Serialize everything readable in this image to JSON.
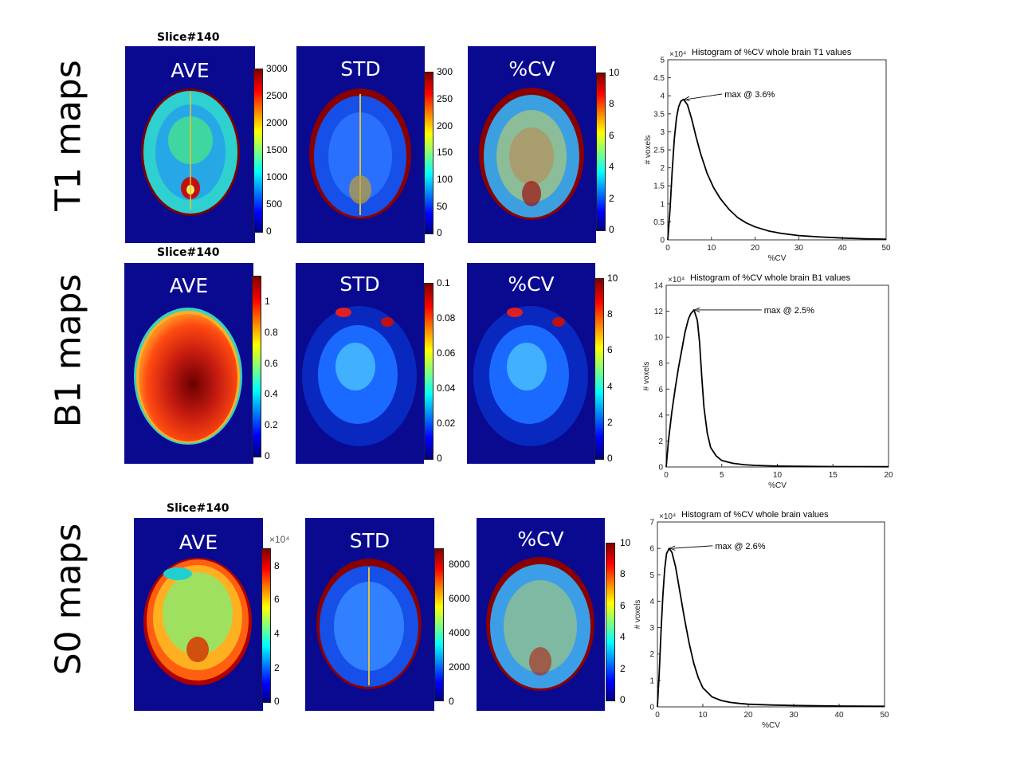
{
  "rows": [
    {
      "label": "T1 maps",
      "slice": "Slice#140",
      "panels": [
        {
          "title": "AVE",
          "ticks": [
            "3000",
            "2500",
            "2000",
            "1500",
            "1000",
            "500",
            "0"
          ],
          "exponent": ""
        },
        {
          "title": "STD",
          "ticks": [
            "300",
            "250",
            "200",
            "150",
            "100",
            "50",
            "0"
          ],
          "exponent": ""
        },
        {
          "title": "%CV",
          "ticks": [
            "10",
            "8",
            "6",
            "4",
            "2",
            "0"
          ],
          "exponent": ""
        }
      ]
    },
    {
      "label": "B1 maps",
      "slice": "Slice#140",
      "panels": [
        {
          "title": "AVE",
          "ticks": [
            "1",
            "0.8",
            "0.6",
            "0.4",
            "0.2",
            "0"
          ],
          "exponent": ""
        },
        {
          "title": "STD",
          "ticks": [
            "0.1",
            "0.08",
            "0.06",
            "0.04",
            "0.02",
            "0"
          ],
          "exponent": ""
        },
        {
          "title": "%CV",
          "ticks": [
            "10",
            "8",
            "6",
            "4",
            "2",
            "0"
          ],
          "exponent": ""
        }
      ]
    },
    {
      "label": "S0 maps",
      "slice": "Slice#140",
      "panels": [
        {
          "title": "AVE",
          "ticks": [
            "8",
            "6",
            "4",
            "2",
            "0"
          ],
          "exponent": "×10⁴"
        },
        {
          "title": "STD",
          "ticks": [
            "8000",
            "6000",
            "4000",
            "2000",
            "0"
          ],
          "exponent": ""
        },
        {
          "title": "%CV",
          "ticks": [
            "10",
            "8",
            "6",
            "4",
            "2",
            "0"
          ],
          "exponent": ""
        }
      ]
    }
  ],
  "colors": {
    "background": "#0a0a90",
    "curve": "#000000"
  },
  "chart_data": [
    {
      "type": "line",
      "title": "Histogram of %CV whole brain T1 values",
      "xlabel": "%CV",
      "ylabel": "# voxels",
      "y_exponent": "×10⁴",
      "xlim": [
        0,
        50
      ],
      "ylim": [
        0,
        5
      ],
      "xticks": [
        0,
        10,
        20,
        30,
        40,
        50
      ],
      "yticks": [
        0,
        0.5,
        1,
        1.5,
        2,
        2.5,
        3,
        3.5,
        4,
        4.5,
        5
      ],
      "ytick_labels": [
        "0",
        "0.5",
        "1",
        "1.5",
        "2",
        "2.5",
        "3",
        "3.5",
        "4",
        "4.5",
        "5"
      ],
      "annotation": {
        "text": "max @ 3.6%",
        "x": 3.6,
        "y": 3.9,
        "text_x": 13,
        "text_y": 4.05
      },
      "x": [
        0,
        0.5,
        1,
        1.5,
        2,
        2.5,
        3,
        3.6,
        4.5,
        5.5,
        6.5,
        7.5,
        9,
        10.5,
        12,
        14,
        16,
        18,
        20,
        23,
        26,
        30,
        35,
        40,
        45,
        50
      ],
      "y": [
        0,
        0.8,
        1.9,
        2.8,
        3.4,
        3.7,
        3.85,
        3.9,
        3.75,
        3.35,
        2.85,
        2.4,
        1.85,
        1.45,
        1.15,
        0.85,
        0.62,
        0.47,
        0.36,
        0.25,
        0.18,
        0.12,
        0.08,
        0.05,
        0.03,
        0.02
      ]
    },
    {
      "type": "line",
      "title": "Histogram of %CV whole brain B1 values",
      "xlabel": "%CV",
      "ylabel": "# voxels",
      "y_exponent": "×10⁴",
      "xlim": [
        0,
        20
      ],
      "ylim": [
        0,
        14
      ],
      "xticks": [
        0,
        5,
        10,
        15,
        20
      ],
      "yticks": [
        0,
        2,
        4,
        6,
        8,
        10,
        12,
        14
      ],
      "ytick_labels": [
        "0",
        "2",
        "4",
        "6",
        "8",
        "10",
        "12",
        "14"
      ],
      "annotation": {
        "text": "max @ 2.5%",
        "x": 2.5,
        "y": 12.1,
        "text_x": 8.8,
        "text_y": 12.1
      },
      "x": [
        0,
        0.2,
        0.5,
        0.8,
        1.1,
        1.4,
        1.7,
        2.0,
        2.2,
        2.5,
        2.8,
        3.0,
        3.2,
        3.4,
        3.7,
        4.0,
        4.5,
        5,
        6,
        7,
        8,
        10,
        12,
        15,
        20
      ],
      "y": [
        0,
        2.0,
        4.2,
        6.0,
        7.6,
        9.0,
        10.4,
        11.4,
        11.8,
        12.1,
        11.3,
        9.6,
        7.0,
        4.6,
        2.6,
        1.5,
        0.85,
        0.5,
        0.28,
        0.18,
        0.12,
        0.07,
        0.05,
        0.03,
        0.02
      ]
    },
    {
      "type": "line",
      "title": "Histogram of %CV whole brain values",
      "xlabel": "%CV",
      "ylabel": "# voxels",
      "y_exponent": "×10⁴",
      "xlim": [
        0,
        50
      ],
      "ylim": [
        0,
        7
      ],
      "xticks": [
        0,
        10,
        20,
        30,
        40,
        50
      ],
      "yticks": [
        0,
        1,
        2,
        3,
        4,
        5,
        6,
        7
      ],
      "ytick_labels": [
        "0",
        "1",
        "2",
        "3",
        "4",
        "5",
        "6",
        "7"
      ],
      "annotation": {
        "text": "max @ 2.6%",
        "x": 2.6,
        "y": 6.0,
        "text_x": 12.7,
        "text_y": 6.1
      },
      "x": [
        0,
        0.4,
        0.8,
        1.2,
        1.6,
        2.0,
        2.6,
        3.2,
        4,
        5,
        6,
        7,
        8,
        9,
        10,
        12,
        14,
        16,
        18,
        20,
        25,
        30,
        40,
        50
      ],
      "y": [
        0,
        1.3,
        2.9,
        4.2,
        5.2,
        5.8,
        6.0,
        5.85,
        5.3,
        4.3,
        3.3,
        2.4,
        1.65,
        1.1,
        0.72,
        0.38,
        0.24,
        0.17,
        0.13,
        0.1,
        0.07,
        0.05,
        0.03,
        0.02
      ]
    }
  ]
}
